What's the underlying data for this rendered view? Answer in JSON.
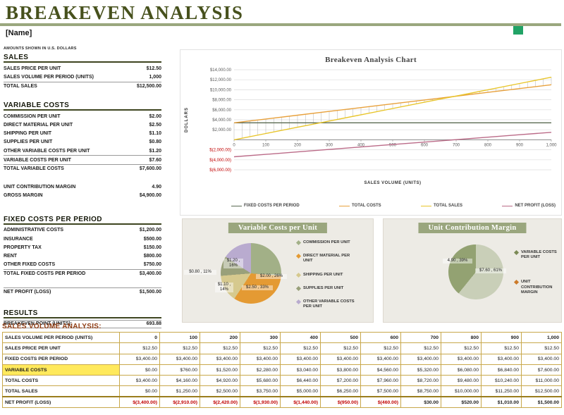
{
  "header": {
    "title": "BREAKEVEN ANALYSIS",
    "name_placeholder": "[Name]",
    "accent_color": "#47511d",
    "rule_color": "#9aa77e"
  },
  "left_panel": {
    "note": "AMOUNTS SHOWN IN U.S. DOLLARS",
    "sections": [
      {
        "heading": "SALES",
        "rows": [
          {
            "label": "SALES PRICE PER UNIT",
            "value": "$12.50"
          },
          {
            "label": "SALES VOLUME PER PERIOD (UNITS)",
            "value": "1,000"
          },
          {
            "label": "TOTAL SALES",
            "value": "$12,500.00",
            "total": true
          }
        ]
      },
      {
        "heading": "VARIABLE COSTS",
        "rows": [
          {
            "label": "COMMISSION PER UNIT",
            "value": "$2.00"
          },
          {
            "label": "DIRECT MATERIAL PER UNIT",
            "value": "$2.50"
          },
          {
            "label": "SHIPPING PER UNIT",
            "value": "$1.10"
          },
          {
            "label": "SUPPLIES PER UNIT",
            "value": "$0.80"
          },
          {
            "label": "OTHER VARIABLE COSTS PER UNIT",
            "value": "$1.20"
          },
          {
            "label": "VARIABLE COSTS PER UNIT",
            "value": "$7.60",
            "total": true
          },
          {
            "label": "TOTAL VARIABLE COSTS",
            "value": "$7,600.00",
            "total": true
          },
          {
            "spacer": true
          },
          {
            "label": "UNIT CONTRIBUTION MARGIN",
            "value": "4.90"
          },
          {
            "label": "GROSS MARGIN",
            "value": "$4,900.00"
          }
        ]
      },
      {
        "heading": "FIXED COSTS PER PERIOD",
        "rows": [
          {
            "label": "ADMINISTRATIVE COSTS",
            "value": "$1,200.00"
          },
          {
            "label": "INSURANCE",
            "value": "$500.00"
          },
          {
            "label": "PROPERTY TAX",
            "value": "$150.00"
          },
          {
            "label": "RENT",
            "value": "$800.00"
          },
          {
            "label": "OTHER FIXED COSTS",
            "value": "$750.00"
          },
          {
            "label": "TOTAL FIXED COSTS PER PERIOD",
            "value": "$3,400.00",
            "total": true
          },
          {
            "spacer": true
          },
          {
            "label": "NET PROFIT (LOSS)",
            "value": "$1,500.00",
            "total": true
          }
        ]
      },
      {
        "heading": "RESULTS",
        "rows": [
          {
            "label": "BREAKEVEN POINT (UNITS):",
            "value": "693.88",
            "total": true
          }
        ]
      }
    ]
  },
  "chart_data": [
    {
      "type": "line",
      "title": "Breakeven Analysis Chart",
      "xlabel": "SALES VOLUME (UNITS)",
      "ylabel": "DOLLARS",
      "x": [
        0,
        100,
        200,
        300,
        400,
        500,
        600,
        700,
        800,
        900,
        1000
      ],
      "x_tick_labels": [
        "0",
        "100",
        "200",
        "300",
        "400",
        "500",
        "600",
        "700",
        "800",
        "900",
        "1,000"
      ],
      "ylim": [
        -6000,
        14000
      ],
      "ytick_step": 2000,
      "y_tick_labels": [
        "$14,000.00",
        "$12,000.00",
        "$10,000.00",
        "$8,000.00",
        "$6,000.00",
        "$4,000.00",
        "$2,000.00",
        "",
        "$(2,000.00)",
        "$(4,000.00)",
        "$(6,000.00)"
      ],
      "grid": true,
      "legend_position": "bottom",
      "highlow_between": [
        "TOTAL COSTS",
        "TOTAL SALES"
      ],
      "series": [
        {
          "name": "FIXED COSTS PER PERIOD",
          "color": "#5a6a52",
          "values": [
            3400,
            3400,
            3400,
            3400,
            3400,
            3400,
            3400,
            3400,
            3400,
            3400,
            3400
          ]
        },
        {
          "name": "TOTAL COSTS",
          "color": "#e8a13c",
          "values": [
            3400,
            4160,
            4920,
            5680,
            6440,
            7200,
            7960,
            8720,
            9480,
            10240,
            11000
          ]
        },
        {
          "name": "TOTAL SALES",
          "color": "#e8c52a",
          "values": [
            0,
            1250,
            2500,
            3750,
            5000,
            6250,
            7500,
            8750,
            10000,
            11250,
            12500
          ]
        },
        {
          "name": "NET PROFIT (LOSS)",
          "color": "#bb6b88",
          "values": [
            -3400,
            -2910,
            -2420,
            -1930,
            -1440,
            -950,
            -460,
            30,
            520,
            1010,
            1500
          ]
        }
      ]
    },
    {
      "type": "pie",
      "title": "Variable Costs per Unit",
      "labels": [
        "COMMISSION PER UNIT",
        "DIRECT MATERIAL PER UNIT",
        "SHIPPING PER UNIT",
        "SUPPLIES PER UNIT",
        "OTHER VARIABLE COSTS PER UNIT"
      ],
      "values": [
        2.0,
        2.5,
        1.1,
        0.8,
        1.2
      ],
      "percents": [
        26,
        33,
        14,
        11,
        16
      ],
      "slice_labels": [
        "$2.00 , 26%",
        "$2.50 , 33%",
        "$1.10 , 14%",
        "$0.80 , 11%",
        "$1.20 , 16%"
      ],
      "colors": [
        "#a2b087",
        "#e49a33",
        "#d6c98e",
        "#99a07a",
        "#b9abcf"
      ],
      "legend_position": "right"
    },
    {
      "type": "pie",
      "title": "Unit Contribution Margin",
      "labels": [
        "VARIABLE COSTS PER UNIT",
        "UNIT CONTRIBUTION MARGIN"
      ],
      "values": [
        7.6,
        4.9
      ],
      "percents": [
        61,
        39
      ],
      "slice_labels": [
        "$7.60 , 61%",
        "4.90 , 39%"
      ],
      "colors": [
        "#c9cfb8",
        "#93a272"
      ],
      "legend_colors": [
        "#7b8a55",
        "#cc7a29"
      ],
      "legend_position": "right"
    }
  ],
  "sales_table": {
    "title": "SALES VOLUME ANALYSIS:",
    "rows": [
      {
        "label": "SALES VOLUME PER PERIOD (UNITS)",
        "values": [
          "0",
          "100",
          "200",
          "300",
          "400",
          "500",
          "600",
          "700",
          "800",
          "900",
          "1,000"
        ]
      },
      {
        "label": "SALES PRICE PER UNIT",
        "values": [
          "$12.50",
          "$12.50",
          "$12.50",
          "$12.50",
          "$12.50",
          "$12.50",
          "$12.50",
          "$12.50",
          "$12.50",
          "$12.50",
          "$12.50"
        ]
      },
      {
        "label": "FIXED COSTS PER PERIOD",
        "values": [
          "$3,400.00",
          "$3,400.00",
          "$3,400.00",
          "$3,400.00",
          "$3,400.00",
          "$3,400.00",
          "$3,400.00",
          "$3,400.00",
          "$3,400.00",
          "$3,400.00",
          "$3,400.00"
        ]
      },
      {
        "label": "VARIABLE COSTS",
        "highlight": true,
        "values": [
          "$0.00",
          "$760.00",
          "$1,520.00",
          "$2,280.00",
          "$3,040.00",
          "$3,800.00",
          "$4,560.00",
          "$5,320.00",
          "$6,080.00",
          "$6,840.00",
          "$7,600.00"
        ]
      },
      {
        "label": "TOTAL COSTS",
        "values": [
          "$3,400.00",
          "$4,160.00",
          "$4,920.00",
          "$5,680.00",
          "$6,440.00",
          "$7,200.00",
          "$7,960.00",
          "$8,720.00",
          "$9,480.00",
          "$10,240.00",
          "$11,000.00"
        ]
      },
      {
        "label": "TOTAL SALES",
        "values": [
          "$0.00",
          "$1,250.00",
          "$2,500.00",
          "$3,750.00",
          "$5,000.00",
          "$6,250.00",
          "$7,500.00",
          "$8,750.00",
          "$10,000.00",
          "$11,250.00",
          "$12,500.00"
        ]
      },
      {
        "label": "NET PROFIT (LOSS)",
        "net": true,
        "values": [
          "$(3,400.00)",
          "$(2,910.00)",
          "$(2,420.00)",
          "$(1,930.00)",
          "$(1,440.00)",
          "$(950.00)",
          "$(460.00)",
          "$30.00",
          "$520.00",
          "$1,010.00",
          "$1,500.00"
        ]
      }
    ]
  }
}
